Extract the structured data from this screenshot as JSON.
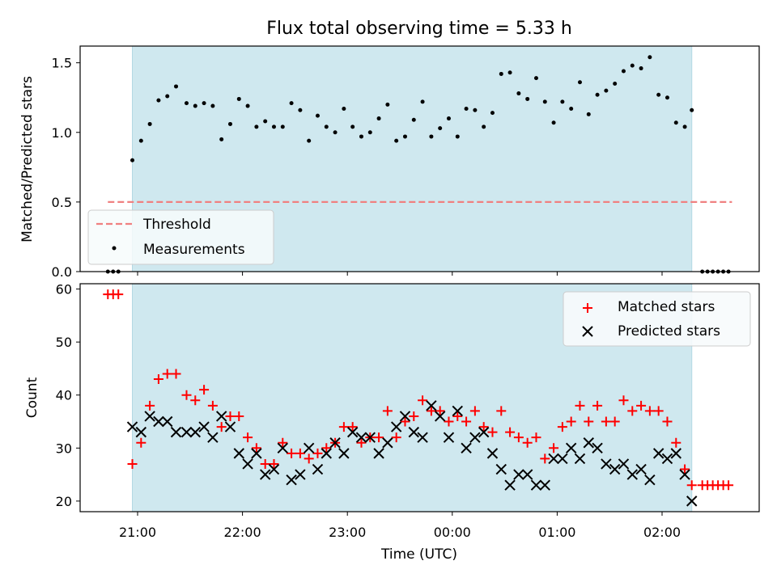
{
  "figure_title": "Flux total observing time = 5.33 h",
  "colors": {
    "shade": "#cfe8ef",
    "threshold": "#f08080",
    "matched": "#ff0000",
    "predicted": "#000000",
    "measurement": "#000000"
  },
  "chart_data": [
    {
      "type": "scatter",
      "ylabel": "Matched/Predicted stars",
      "xlabel": "",
      "ylim": [
        0,
        1.62
      ],
      "yticks": [
        "0.0",
        "0.5",
        "1.0",
        "1.5"
      ],
      "xticks": [
        "21:00",
        "22:00",
        "23:00",
        "00:00",
        "01:00",
        "02:00"
      ],
      "shaded_interval": [
        "20:57",
        "02:17"
      ],
      "legend_position": "lower-left",
      "series": [
        {
          "name": "Threshold",
          "kind": "dashed-line",
          "x": [
            "20:43",
            "02:40"
          ],
          "y": [
            0.5,
            0.5
          ]
        },
        {
          "name": "Measurements",
          "kind": "points",
          "x": [
            "20:43",
            "20:46",
            "20:49",
            "20:57",
            "21:02",
            "21:07",
            "21:12",
            "21:17",
            "21:22",
            "21:28",
            "21:33",
            "21:38",
            "21:43",
            "21:48",
            "21:53",
            "21:58",
            "22:03",
            "22:08",
            "22:13",
            "22:18",
            "22:23",
            "22:28",
            "22:33",
            "22:38",
            "22:43",
            "22:48",
            "22:53",
            "22:58",
            "23:03",
            "23:08",
            "23:13",
            "23:18",
            "23:23",
            "23:28",
            "23:33",
            "23:38",
            "23:43",
            "23:48",
            "23:53",
            "23:58",
            "00:03",
            "00:08",
            "00:13",
            "00:18",
            "00:23",
            "00:28",
            "00:33",
            "00:38",
            "00:43",
            "00:48",
            "00:53",
            "00:58",
            "01:03",
            "01:08",
            "01:13",
            "01:18",
            "01:23",
            "01:28",
            "01:33",
            "01:38",
            "01:43",
            "01:48",
            "01:53",
            "01:58",
            "02:03",
            "02:08",
            "02:13",
            "02:17",
            "02:23",
            "02:26",
            "02:29",
            "02:32",
            "02:35",
            "02:38"
          ],
          "y": [
            0,
            0,
            0,
            0.8,
            0.94,
            1.06,
            1.23,
            1.26,
            1.33,
            1.21,
            1.19,
            1.21,
            1.19,
            0.95,
            1.06,
            1.24,
            1.19,
            1.04,
            1.08,
            1.04,
            1.04,
            1.21,
            1.16,
            0.94,
            1.12,
            1.04,
            1.0,
            1.17,
            1.04,
            0.97,
            1.0,
            1.1,
            1.2,
            0.94,
            0.97,
            1.09,
            1.22,
            0.97,
            1.03,
            1.1,
            0.97,
            1.17,
            1.16,
            1.04,
            1.14,
            1.42,
            1.43,
            1.28,
            1.24,
            1.39,
            1.22,
            1.07,
            1.22,
            1.17,
            1.36,
            1.13,
            1.27,
            1.3,
            1.35,
            1.44,
            1.48,
            1.46,
            1.54,
            1.27,
            1.25,
            1.07,
            1.04,
            1.16,
            0,
            0,
            0,
            0,
            0,
            0
          ]
        }
      ]
    },
    {
      "type": "scatter",
      "ylabel": "Count",
      "xlabel": "Time (UTC)",
      "ylim": [
        18,
        61
      ],
      "yticks": [
        "20",
        "30",
        "40",
        "50",
        "60"
      ],
      "xticks": [
        "21:00",
        "22:00",
        "23:00",
        "00:00",
        "01:00",
        "02:00"
      ],
      "shaded_interval": [
        "20:57",
        "02:17"
      ],
      "legend_position": "upper-right",
      "series": [
        {
          "name": "Matched stars",
          "marker": "+",
          "x": [
            "20:43",
            "20:46",
            "20:49",
            "20:57",
            "21:02",
            "21:07",
            "21:12",
            "21:17",
            "21:22",
            "21:28",
            "21:33",
            "21:38",
            "21:43",
            "21:48",
            "21:53",
            "21:58",
            "22:03",
            "22:08",
            "22:13",
            "22:18",
            "22:23",
            "22:28",
            "22:33",
            "22:38",
            "22:43",
            "22:48",
            "22:53",
            "22:58",
            "23:03",
            "23:08",
            "23:13",
            "23:18",
            "23:23",
            "23:28",
            "23:33",
            "23:38",
            "23:43",
            "23:48",
            "23:53",
            "23:58",
            "00:03",
            "00:08",
            "00:13",
            "00:18",
            "00:23",
            "00:28",
            "00:33",
            "00:38",
            "00:43",
            "00:48",
            "00:53",
            "00:58",
            "01:03",
            "01:08",
            "01:13",
            "01:18",
            "01:23",
            "01:28",
            "01:33",
            "01:38",
            "01:43",
            "01:48",
            "01:53",
            "01:58",
            "02:03",
            "02:08",
            "02:13",
            "02:17",
            "02:23",
            "02:26",
            "02:29",
            "02:32",
            "02:35",
            "02:38"
          ],
          "y": [
            59,
            59,
            59,
            27,
            31,
            38,
            43,
            44,
            44,
            40,
            39,
            41,
            38,
            34,
            36,
            36,
            32,
            30,
            27,
            27,
            31,
            29,
            29,
            28,
            29,
            30,
            31,
            34,
            34,
            31,
            32,
            32,
            37,
            32,
            35,
            36,
            39,
            37,
            37,
            35,
            36,
            35,
            37,
            34,
            33,
            37,
            33,
            32,
            31,
            32,
            28,
            30,
            34,
            35,
            38,
            35,
            38,
            35,
            35,
            39,
            37,
            38,
            37,
            37,
            35,
            31,
            26,
            23,
            23,
            23,
            23,
            23,
            23,
            23
          ]
        },
        {
          "name": "Predicted stars",
          "marker": "x",
          "x": [
            "20:57",
            "21:02",
            "21:07",
            "21:12",
            "21:17",
            "21:22",
            "21:28",
            "21:33",
            "21:38",
            "21:43",
            "21:48",
            "21:53",
            "21:58",
            "22:03",
            "22:08",
            "22:13",
            "22:18",
            "22:23",
            "22:28",
            "22:33",
            "22:38",
            "22:43",
            "22:48",
            "22:53",
            "22:58",
            "23:03",
            "23:08",
            "23:13",
            "23:18",
            "23:23",
            "23:28",
            "23:33",
            "23:38",
            "23:43",
            "23:48",
            "23:53",
            "23:58",
            "00:03",
            "00:08",
            "00:13",
            "00:18",
            "00:23",
            "00:28",
            "00:33",
            "00:38",
            "00:43",
            "00:48",
            "00:53",
            "00:58",
            "01:03",
            "01:08",
            "01:13",
            "01:18",
            "01:23",
            "01:28",
            "01:33",
            "01:38",
            "01:43",
            "01:48",
            "01:53",
            "01:58",
            "02:03",
            "02:08",
            "02:13",
            "02:17"
          ],
          "y": [
            34,
            33,
            36,
            35,
            35,
            33,
            33,
            33,
            34,
            32,
            36,
            34,
            29,
            27,
            29,
            25,
            26,
            30,
            24,
            25,
            30,
            26,
            29,
            31,
            29,
            33,
            32,
            32,
            29,
            31,
            34,
            36,
            33,
            32,
            38,
            36,
            32,
            37,
            30,
            32,
            33,
            29,
            26,
            23,
            25,
            25,
            23,
            23,
            28,
            28,
            30,
            28,
            31,
            30,
            27,
            26,
            27,
            25,
            26,
            24,
            29,
            28,
            29,
            25,
            20
          ]
        }
      ]
    }
  ]
}
